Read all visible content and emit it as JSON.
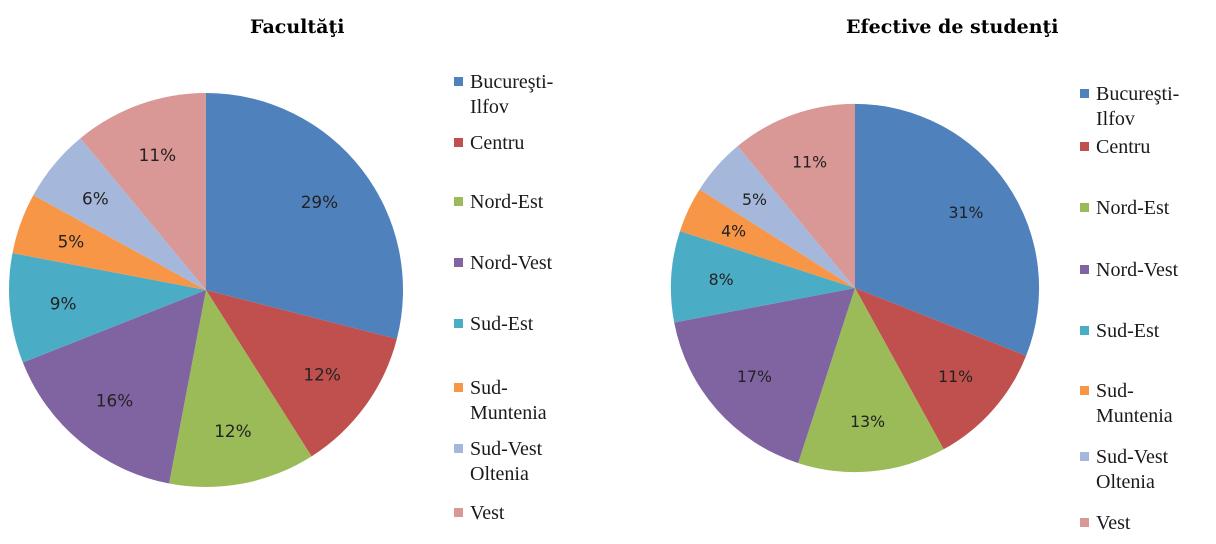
{
  "chart_data": [
    {
      "type": "pie",
      "title": "Facultăţi",
      "categories": [
        "Bucureşti-Ilfov",
        "Centru",
        "Nord-Est",
        "Nord-Vest",
        "Sud-Est",
        "Sud-Muntenia",
        "Sud-Vest Oltenia",
        "Vest"
      ],
      "values": [
        29,
        12,
        12,
        16,
        9,
        5,
        6,
        11
      ],
      "data_labels": [
        "29%",
        "12%",
        "12%",
        "16%",
        "9%",
        "5%",
        "6%",
        "11%"
      ],
      "legend_labels": [
        "Bucureşti-\nIlfov",
        "Centru",
        "Nord-Est",
        "Nord-Vest",
        "Sud-Est",
        "Sud-\nMuntenia",
        "Sud-Vest\nOltenia",
        "Vest"
      ],
      "legend_position": "right",
      "colors": [
        "#4F81BD",
        "#C0504D",
        "#9BBB59",
        "#8064A2",
        "#4BACC6",
        "#F79646",
        "#A5B8DB",
        "#D99795"
      ]
    },
    {
      "type": "pie",
      "title": "Efective de studenţi",
      "categories": [
        "Bucureşti-Ilfov",
        "Centru",
        "Nord-Est",
        "Nord-Vest",
        "Sud-Est",
        "Sud-Muntenia",
        "Sud-Vest Oltenia",
        "Vest"
      ],
      "values": [
        31,
        11,
        13,
        17,
        8,
        4,
        5,
        11
      ],
      "data_labels": [
        "31%",
        "11%",
        "13%",
        "17%",
        "8%",
        "4%",
        "5%",
        "11%"
      ],
      "legend_labels": [
        "Bucureşti-\nIlfov",
        "Centru",
        "Nord-Est",
        "Nord-Vest",
        "Sud-Est",
        "Sud-\nMuntenia",
        "Sud-Vest\nOltenia",
        "Vest"
      ],
      "legend_position": "right",
      "colors": [
        "#4F81BD",
        "#C0504D",
        "#9BBB59",
        "#8064A2",
        "#4BACC6",
        "#F79646",
        "#A5B8DB",
        "#D99795"
      ]
    }
  ]
}
